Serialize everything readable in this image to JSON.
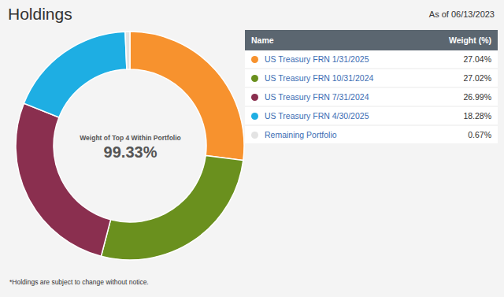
{
  "chart_data": {
    "type": "pie",
    "title": "Holdings",
    "subtitle": "As of 06/13/2023",
    "categories": [
      "US Treasury FRN 1/31/2025",
      "US Treasury FRN 10/31/2024",
      "US Treasury FRN 7/31/2024",
      "US Treasury FRN 4/30/2025",
      "Remaining Portfolio"
    ],
    "values": [
      27.04,
      27.02,
      26.99,
      18.28,
      0.67
    ],
    "value_labels": [
      "27.04%",
      "27.02%",
      "26.99%",
      "18.28%",
      "0.67%"
    ],
    "colors": [
      "#f7922e",
      "#6a901e",
      "#8a2f4f",
      "#1eaee3",
      "#e3e3e3"
    ],
    "legend": "right",
    "table_headers": [
      "Name",
      "Weight (%)"
    ],
    "center_label": "Weight of Top 4 Within Portfolio",
    "center_value": 99.33,
    "center_value_label": "99.33%",
    "caption": "*Holdings are subject to change without notice."
  }
}
